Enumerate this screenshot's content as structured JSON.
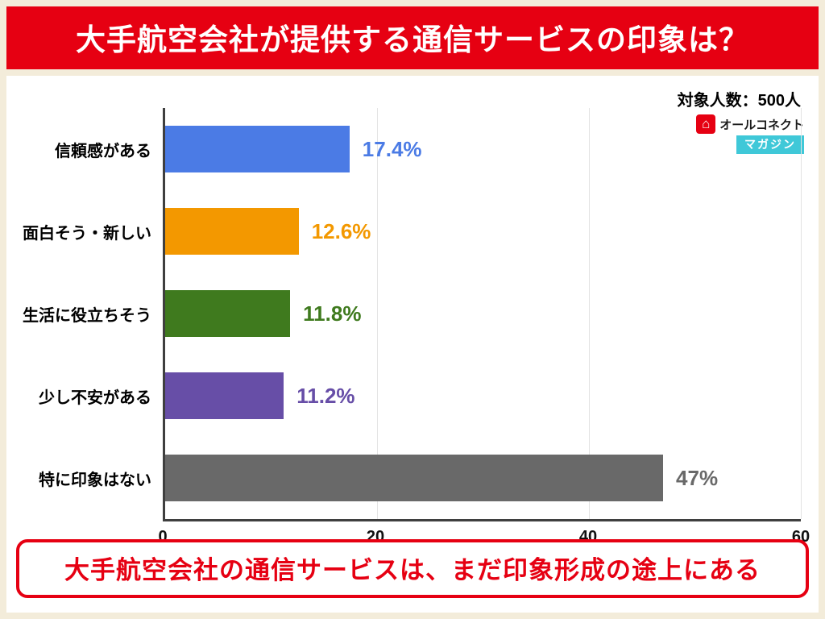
{
  "header": {
    "title": "大手航空会社が提供する通信サービスの印象は？",
    "sample_label": "対象人数：500人",
    "accent_color": "#e60012"
  },
  "logo": {
    "icon_glyph": "⌂",
    "name": "オールコネクト",
    "sub": "マガジン",
    "sub_bg_color": "#3fc8d8"
  },
  "chart_data": {
    "type": "bar",
    "orientation": "horizontal",
    "title": "大手航空会社が提供する通信サービスの印象は？",
    "categories": [
      "信頼感がある",
      "面白そう・新しい",
      "生活に役立ちそう",
      "少し不安がある",
      "特に印象はない"
    ],
    "values": [
      17.4,
      12.6,
      11.8,
      11.2,
      47
    ],
    "value_labels": [
      "17.4%",
      "12.6%",
      "11.8%",
      "11.2%",
      "47%"
    ],
    "bar_colors": [
      "#4b7be5",
      "#f39800",
      "#3f7a1e",
      "#674ea7",
      "#696969"
    ],
    "xlim": [
      0,
      60
    ],
    "x_ticks": [
      0,
      20,
      40,
      60
    ],
    "grid": true,
    "legend": "none"
  },
  "footer": {
    "text": "大手航空会社の通信サービスは、まだ印象形成の途上にある"
  }
}
